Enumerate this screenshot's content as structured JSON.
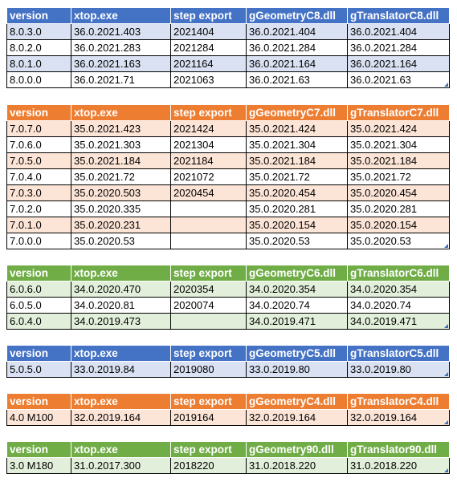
{
  "tables": [
    {
      "theme": "blue",
      "header_color": "#4472c4",
      "band_color": "#d9e1f2",
      "columns": [
        "version",
        "xtop.exe",
        "step export",
        "gGeometryC8.dll",
        "gTranslatorC8.dll"
      ],
      "rows": [
        [
          "8.0.3.0",
          "36.0.2021.403",
          "2021404",
          "36.0.2021.404",
          "36.0.2021.404"
        ],
        [
          "8.0.2.0",
          "36.0.2021.283",
          "2021284",
          "36.0.2021.284",
          "36.0.2021.284"
        ],
        [
          "8.0.1.0",
          "36.0.2021.163",
          "2021164",
          "36.0.2021.164",
          "36.0.2021.164"
        ],
        [
          "8.0.0.0",
          "36.0.2021.71",
          "2021063",
          "36.0.2021.63",
          "36.0.2021.63"
        ]
      ]
    },
    {
      "theme": "orange",
      "header_color": "#ed7d31",
      "band_color": "#fce4d6",
      "columns": [
        "version",
        "xtop.exe",
        "step export",
        "gGeometryC7.dll",
        "gTranslatorC7.dll"
      ],
      "rows": [
        [
          "7.0.7.0",
          "35.0.2021.423",
          "2021424",
          "35.0.2021.424",
          "35.0.2021.424"
        ],
        [
          "7.0.6.0",
          "35.0.2021.303",
          "2021304",
          "35.0.2021.304",
          "35.0.2021.304"
        ],
        [
          "7.0.5.0",
          "35.0.2021.184",
          "2021184",
          "35.0.2021.184",
          "35.0.2021.184"
        ],
        [
          "7.0.4.0",
          "35.0.2021.72",
          "2021072",
          "35.0.2021.72",
          "35.0.2021.72"
        ],
        [
          "7.0.3.0",
          "35.0.2020.503",
          "2020454",
          "35.0.2020.454",
          "35.0.2020.454"
        ],
        [
          "7.0.2.0",
          "35.0.2020.335",
          "",
          "35.0.2020.281",
          "35.0.2020.281"
        ],
        [
          "7.0.1.0",
          "35.0.2020.231",
          "",
          "35.0.2020.154",
          "35.0.2020.154"
        ],
        [
          "7.0.0.0",
          "35.0.2020.53",
          "",
          "35.0.2020.53",
          "35.0.2020.53"
        ]
      ]
    },
    {
      "theme": "green",
      "header_color": "#70ad47",
      "band_color": "#e2efda",
      "columns": [
        "version",
        "xtop.exe",
        "step export",
        "gGeometryC6.dll",
        "gTranslatorC6.dll"
      ],
      "rows": [
        [
          "6.0.6.0",
          "34.0.2020.470",
          "2020354",
          "34.0.2020.354",
          "34.0.2020.354"
        ],
        [
          "6.0.5.0",
          "34.0.2020.81",
          "2020074",
          "34.0.2020.74",
          "34.0.2020.74"
        ],
        [
          "6.0.4.0",
          "34.0.2019.473",
          "",
          "34.0.2019.471",
          "34.0.2019.471"
        ]
      ]
    },
    {
      "theme": "blue",
      "header_color": "#4472c4",
      "band_color": "#d9e1f2",
      "columns": [
        "version",
        "xtop.exe",
        "step export",
        "gGeometryC5.dll",
        "gTranslatorC5.dll"
      ],
      "rows": [
        [
          "5.0.5.0",
          "33.0.2019.84",
          "2019080",
          "33.0.2019.80",
          "33.0.2019.80"
        ]
      ]
    },
    {
      "theme": "orange",
      "header_color": "#ed7d31",
      "band_color": "#fce4d6",
      "columns": [
        "version",
        "xtop.exe",
        "step export",
        "gGeometryC4.dll",
        "gTranslatorC4.dll"
      ],
      "rows": [
        [
          "4.0 M100",
          "32.0.2019.164",
          "2019164",
          "32.0.2019.164",
          "32.0.2019.164"
        ]
      ]
    },
    {
      "theme": "green",
      "header_color": "#70ad47",
      "band_color": "#e2efda",
      "columns": [
        "version",
        "xtop.exe",
        "step export",
        "gGeometry90.dll",
        "gTranslator90.dll"
      ],
      "rows": [
        [
          "3.0 M180",
          "31.0.2017.300",
          "2018220",
          "31.0.2018.220",
          "31.0.2018.220"
        ]
      ]
    }
  ]
}
